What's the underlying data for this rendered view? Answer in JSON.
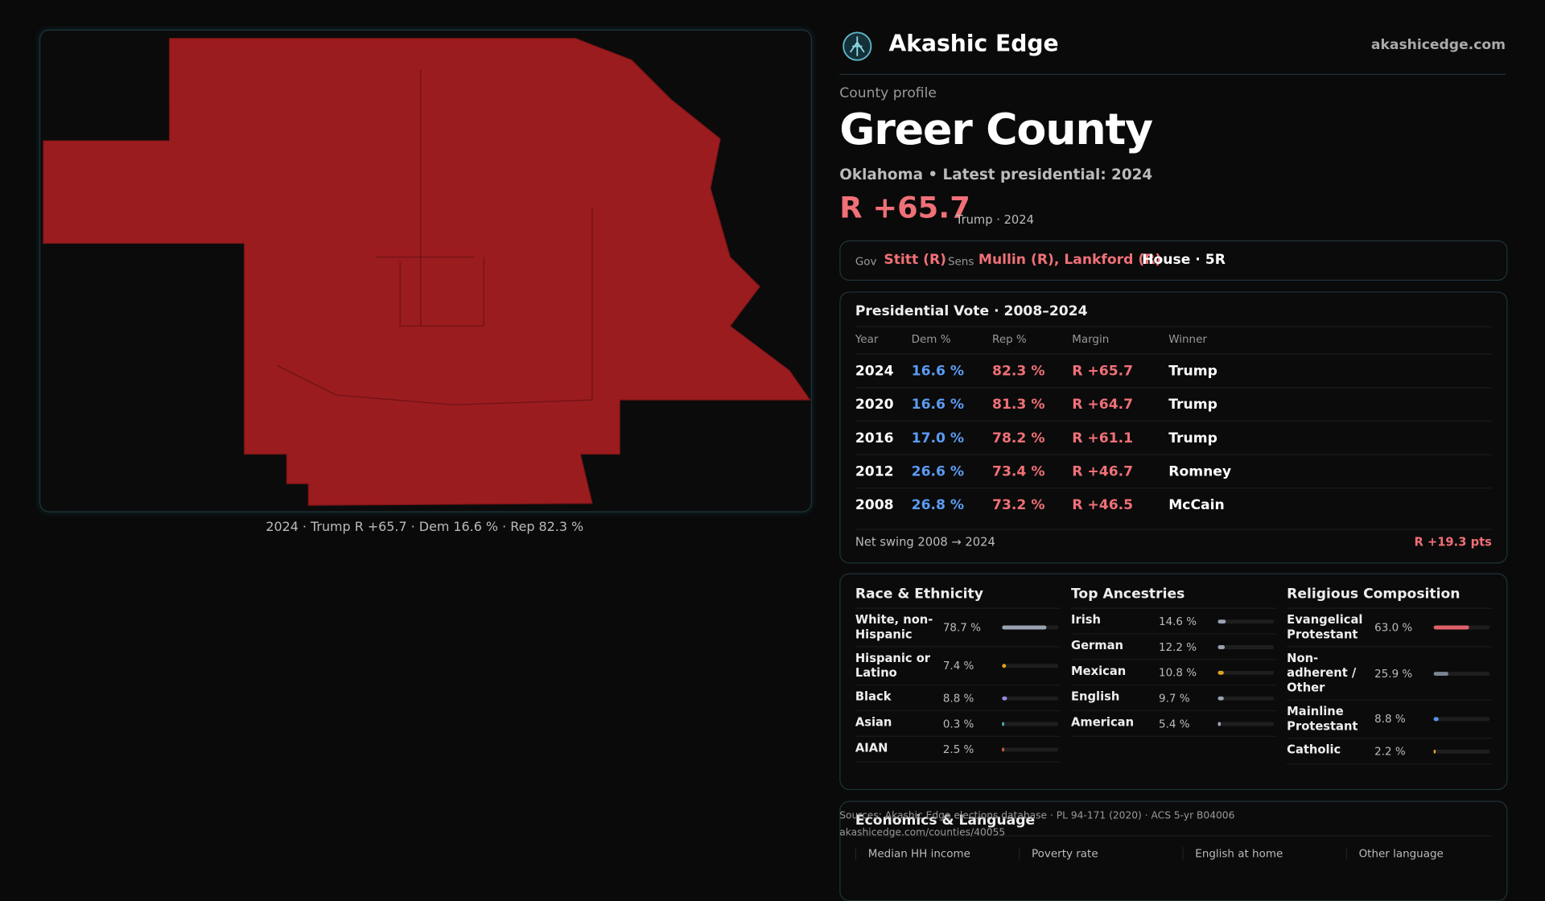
{
  "header": {
    "brand": "Akashic Edge",
    "site": "akashicedge.com"
  },
  "map": {
    "caption": "2024 · Trump R +65.7 · Dem 16.6 % · Rep 82.3 %"
  },
  "profile": {
    "kicker": "County profile",
    "name": "Greer County",
    "subtitle": "Oklahoma • Latest presidential: 2024",
    "margin": "R +65.7",
    "margin_note": "Trump · 2024"
  },
  "officials": {
    "gov_label": "Gov",
    "gov": "Stitt (R)",
    "sens_label": "Sens",
    "sens": "Mullin (R), Lankford (R)",
    "house": "House · 5R"
  },
  "vote_table": {
    "title": "Presidential Vote · 2008–2024",
    "columns": [
      "Year",
      "Dem %",
      "Rep %",
      "Margin",
      "Winner"
    ],
    "rows": [
      [
        "2024",
        "16.6 %",
        "82.3 %",
        "R +65.7",
        "Trump"
      ],
      [
        "2020",
        "16.6 %",
        "81.3 %",
        "R +64.7",
        "Trump"
      ],
      [
        "2016",
        "17.0 %",
        "78.2 %",
        "R +61.1",
        "Trump"
      ],
      [
        "2012",
        "26.6 %",
        "73.4 %",
        "R +46.7",
        "Romney"
      ],
      [
        "2008",
        "26.8 %",
        "73.2 %",
        "R +46.5",
        "McCain"
      ]
    ],
    "swing_label": "Net swing 2008 → 2024",
    "swing_value": "R +19.3 pts"
  },
  "demographics": [
    {
      "title": "Race & Ethnicity",
      "rows": [
        {
          "label": "White, non-Hispanic",
          "value": 78.7,
          "value_label": "78.7 %",
          "color": "#9aa3b2"
        },
        {
          "label": "Hispanic or Latino",
          "value": 7.4,
          "value_label": "7.4 %",
          "color": "#e0a020"
        },
        {
          "label": "Black",
          "value": 8.8,
          "value_label": "8.8 %",
          "color": "#9b87e0"
        },
        {
          "label": "Asian",
          "value": 0.3,
          "value_label": "0.3 %",
          "color": "#4fc0c0"
        },
        {
          "label": "AIAN",
          "value": 2.5,
          "value_label": "2.5 %",
          "color": "#e06a40"
        }
      ]
    },
    {
      "title": "Top Ancestries",
      "rows": [
        {
          "label": "Irish",
          "value": 14.6,
          "value_label": "14.6 %",
          "color": "#9aa3b2"
        },
        {
          "label": "German",
          "value": 12.2,
          "value_label": "12.2 %",
          "color": "#9aa3b2"
        },
        {
          "label": "Mexican",
          "value": 10.8,
          "value_label": "10.8 %",
          "color": "#e0a020"
        },
        {
          "label": "English",
          "value": 9.7,
          "value_label": "9.7 %",
          "color": "#9aa3b2"
        },
        {
          "label": "American",
          "value": 5.4,
          "value_label": "5.4 %",
          "color": "#9aa3b2"
        }
      ]
    },
    {
      "title": "Religious Composition",
      "rows": [
        {
          "label": "Evangelical Protestant",
          "value": 63.0,
          "value_label": "63.0 %",
          "color": "#e0606a"
        },
        {
          "label": "Non-adherent / Other",
          "value": 25.9,
          "value_label": "25.9 %",
          "color": "#7a8494"
        },
        {
          "label": "Mainline Protestant",
          "value": 8.8,
          "value_label": "8.8 %",
          "color": "#5b8ff0"
        },
        {
          "label": "Catholic",
          "value": 2.2,
          "value_label": "2.2 %",
          "color": "#e0a020"
        }
      ]
    }
  ],
  "sources": {
    "line": "Sources: Akashic Edge elections database · PL 94-171 (2020) · ACS 5-yr B04006",
    "url": "akashicedge.com/counties/40055"
  },
  "economics": {
    "title": "Economics & Language",
    "columns": [
      "Median HH income",
      "Poverty rate",
      "English at home",
      "Other language"
    ]
  }
}
